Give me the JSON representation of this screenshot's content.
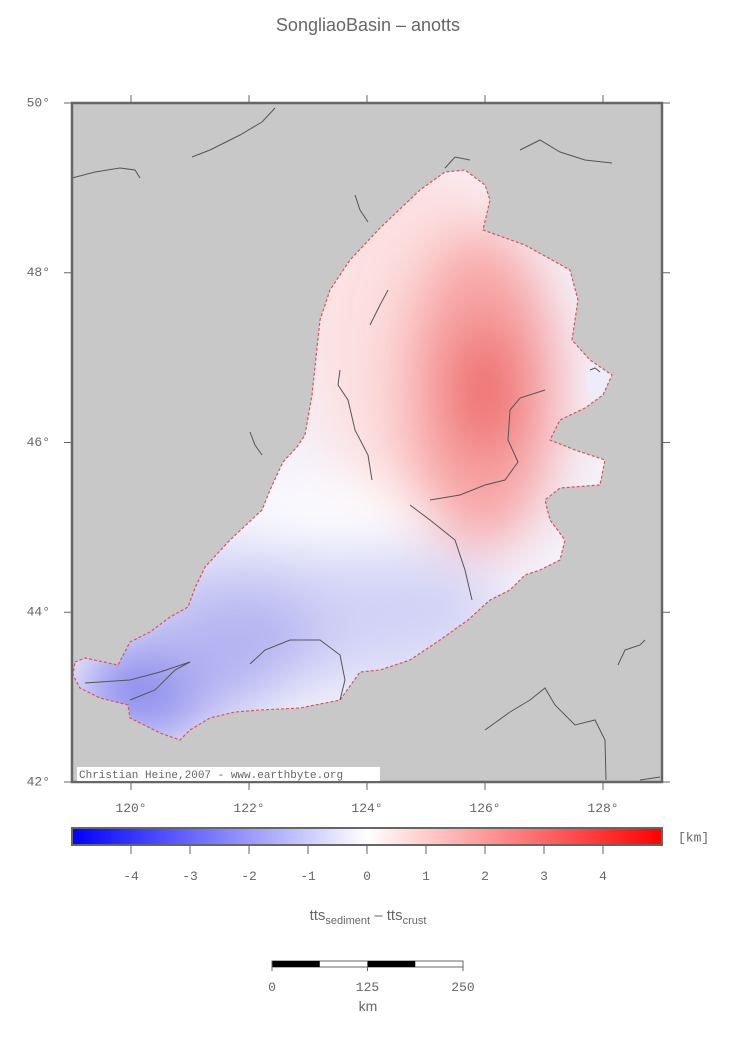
{
  "title": "SongliaoBasin – anotts",
  "map": {
    "lonlim": [
      119,
      129
    ],
    "latlim": [
      42,
      50
    ],
    "lon_ticks": [
      {
        "value": 120,
        "label": "120°"
      },
      {
        "value": 122,
        "label": "122°"
      },
      {
        "value": 124,
        "label": "124°"
      },
      {
        "value": 126,
        "label": "126°"
      },
      {
        "value": 128,
        "label": "128°"
      }
    ],
    "lat_ticks": [
      {
        "value": 42,
        "label": "42°"
      },
      {
        "value": 44,
        "label": "44°"
      },
      {
        "value": 46,
        "label": "46°"
      },
      {
        "value": 48,
        "label": "48°"
      },
      {
        "value": 50,
        "label": "50°"
      }
    ],
    "credit": "Christian Heine,2007 - www.earthbyte.org"
  },
  "colorbar": {
    "lim": [
      -5,
      5
    ],
    "ticks": [
      -4,
      -3,
      -2,
      -1,
      0,
      1,
      2,
      3,
      4
    ],
    "unit": "[km]",
    "label": {
      "main": "tts",
      "sub": "sediment",
      "sep": " – ",
      "main2": "tts",
      "sub2": "crust"
    }
  },
  "scalebar": {
    "lim": [
      0,
      250
    ],
    "ticks": [
      0,
      125,
      250
    ],
    "unit": "km"
  }
}
